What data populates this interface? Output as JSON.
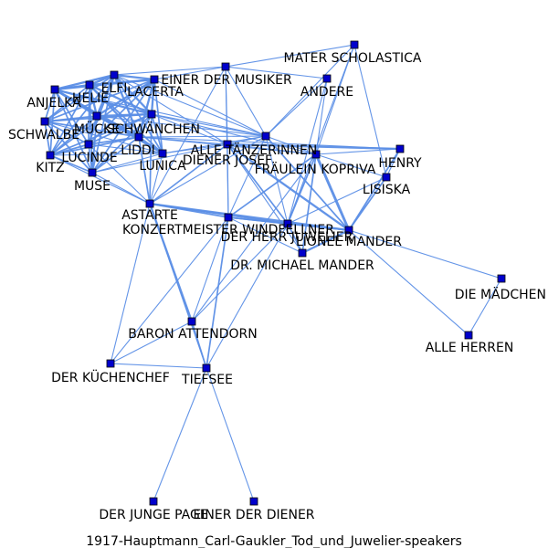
{
  "title": "1917-Hauptmann_Carl-Gaukler_Tod_und_Juwelier-speakers",
  "colors": {
    "background": "#ffffff",
    "edge": "#5b8ee6",
    "node_fill": "#0000cc",
    "node_stroke": "#000000",
    "label": "#000000"
  },
  "nodes": [
    {
      "id": "MATER SCHOLASTICA",
      "label": "MATER SCHOLASTICA"
    },
    {
      "id": "EINER DER MUSIKER",
      "label": "EINER DER MUSIKER"
    },
    {
      "id": "ANDERE",
      "label": "ANDERE"
    },
    {
      "id": "ANJELKA",
      "label": "ANJELKA"
    },
    {
      "id": "HELIE",
      "label": "HELIE"
    },
    {
      "id": "ELFI",
      "label": "ELFI"
    },
    {
      "id": "LACERTA",
      "label": "LACERTA"
    },
    {
      "id": "MÜCKE",
      "label": "MÜCKE"
    },
    {
      "id": "SCHWALBE",
      "label": "SCHWALBE"
    },
    {
      "id": "SCHWÄNCHEN",
      "label": "SCHWÄNCHEN"
    },
    {
      "id": "LIDDI",
      "label": "LIDDI"
    },
    {
      "id": "LUCINDE",
      "label": "LUCINDE"
    },
    {
      "id": "KITZ",
      "label": "KITZ"
    },
    {
      "id": "LUNICA",
      "label": "LUNICA"
    },
    {
      "id": "MUSE",
      "label": "MUSE"
    },
    {
      "id": "ALLE TÄNZERINNEN",
      "label": "ALLE TÄNZERINNEN"
    },
    {
      "id": "DIENER JOSEF",
      "label": "DIENER JOSEF"
    },
    {
      "id": "FRÄULEIN KOPRIVA",
      "label": "FRÄULEIN KOPRIVA"
    },
    {
      "id": "HENRY",
      "label": "HENRY"
    },
    {
      "id": "LISISKA",
      "label": "LISISKA"
    },
    {
      "id": "ASTARTE",
      "label": "ASTARTE"
    },
    {
      "id": "KONZERTMEISTER WINDFELLNER",
      "label": "KONZERTMEISTER WINDFELLNER"
    },
    {
      "id": "DER HERR JUWELIER",
      "label": "DER HERR JUWELIER"
    },
    {
      "id": "LIONEL MANDER",
      "label": "LIONEL MANDER"
    },
    {
      "id": "DR. MICHAEL MANDER",
      "label": "DR. MICHAEL MANDER"
    },
    {
      "id": "DIE MÄDCHEN",
      "label": "DIE MÄDCHEN"
    },
    {
      "id": "ALLE HERREN",
      "label": "ALLE HERREN"
    },
    {
      "id": "BARON ATTENDORN",
      "label": "BARON ATTENDORN"
    },
    {
      "id": "DER KÜCHENCHEF",
      "label": "DER KÜCHENCHEF"
    },
    {
      "id": "TIEFSEE",
      "label": "TIEFSEE"
    },
    {
      "id": "DER JUNGE PAGE",
      "label": "DER JUNGE PAGE"
    },
    {
      "id": "EINER DER DIENER",
      "label": "EINER DER DIENER"
    }
  ],
  "edges": [
    [
      "ANJELKA",
      "HELIE",
      3
    ],
    [
      "ANJELKA",
      "ELFI",
      3
    ],
    [
      "ANJELKA",
      "LACERTA",
      3
    ],
    [
      "ANJELKA",
      "MÜCKE",
      3
    ],
    [
      "ANJELKA",
      "SCHWALBE",
      2
    ],
    [
      "ANJELKA",
      "SCHWÄNCHEN",
      3
    ],
    [
      "ANJELKA",
      "LIDDI",
      3
    ],
    [
      "ANJELKA",
      "LUCINDE",
      2
    ],
    [
      "ANJELKA",
      "KITZ",
      2
    ],
    [
      "ANJELKA",
      "MUSE",
      2
    ],
    [
      "ANJELKA",
      "LUNICA",
      2
    ],
    [
      "ANJELKA",
      "ALLE TÄNZERINNEN",
      1
    ],
    [
      "HELIE",
      "ELFI",
      3
    ],
    [
      "HELIE",
      "LACERTA",
      3
    ],
    [
      "HELIE",
      "MÜCKE",
      3
    ],
    [
      "HELIE",
      "SCHWALBE",
      2
    ],
    [
      "HELIE",
      "SCHWÄNCHEN",
      3
    ],
    [
      "HELIE",
      "LIDDI",
      3
    ],
    [
      "HELIE",
      "LUCINDE",
      2
    ],
    [
      "HELIE",
      "KITZ",
      2
    ],
    [
      "HELIE",
      "MUSE",
      2
    ],
    [
      "HELIE",
      "LUNICA",
      2
    ],
    [
      "ELFI",
      "LACERTA",
      3
    ],
    [
      "ELFI",
      "MÜCKE",
      3
    ],
    [
      "ELFI",
      "SCHWALBE",
      2
    ],
    [
      "ELFI",
      "SCHWÄNCHEN",
      3
    ],
    [
      "ELFI",
      "LIDDI",
      3
    ],
    [
      "ELFI",
      "LUCINDE",
      2
    ],
    [
      "ELFI",
      "KITZ",
      2
    ],
    [
      "ELFI",
      "MUSE",
      2
    ],
    [
      "ELFI",
      "LUNICA",
      2
    ],
    [
      "ELFI",
      "EINER DER MUSIKER",
      1
    ],
    [
      "ELFI",
      "ALLE TÄNZERINNEN",
      1
    ],
    [
      "ELFI",
      "DIENER JOSEF",
      1
    ],
    [
      "LACERTA",
      "MÜCKE",
      3
    ],
    [
      "LACERTA",
      "SCHWALBE",
      2
    ],
    [
      "LACERTA",
      "SCHWÄNCHEN",
      3
    ],
    [
      "LACERTA",
      "LIDDI",
      3
    ],
    [
      "LACERTA",
      "LUCINDE",
      2
    ],
    [
      "LACERTA",
      "KITZ",
      2
    ],
    [
      "LACERTA",
      "MUSE",
      2
    ],
    [
      "LACERTA",
      "LUNICA",
      2
    ],
    [
      "LACERTA",
      "EINER DER MUSIKER",
      1
    ],
    [
      "LACERTA",
      "ALLE TÄNZERINNEN",
      1
    ],
    [
      "MÜCKE",
      "SCHWALBE",
      2
    ],
    [
      "MÜCKE",
      "SCHWÄNCHEN",
      3
    ],
    [
      "MÜCKE",
      "LIDDI",
      3
    ],
    [
      "MÜCKE",
      "LUCINDE",
      2
    ],
    [
      "MÜCKE",
      "KITZ",
      2
    ],
    [
      "MÜCKE",
      "MUSE",
      2
    ],
    [
      "MÜCKE",
      "LUNICA",
      2
    ],
    [
      "MÜCKE",
      "ALLE TÄNZERINNEN",
      1
    ],
    [
      "SCHWALBE",
      "SCHWÄNCHEN",
      2
    ],
    [
      "SCHWALBE",
      "LIDDI",
      2
    ],
    [
      "SCHWALBE",
      "LUCINDE",
      2
    ],
    [
      "SCHWALBE",
      "KITZ",
      2
    ],
    [
      "SCHWALBE",
      "MUSE",
      2
    ],
    [
      "SCHWALBE",
      "LUNICA",
      1
    ],
    [
      "SCHWÄNCHEN",
      "LIDDI",
      3
    ],
    [
      "SCHWÄNCHEN",
      "LUCINDE",
      2
    ],
    [
      "SCHWÄNCHEN",
      "KITZ",
      2
    ],
    [
      "SCHWÄNCHEN",
      "MUSE",
      2
    ],
    [
      "SCHWÄNCHEN",
      "LUNICA",
      2
    ],
    [
      "SCHWÄNCHEN",
      "ALLE TÄNZERINNEN",
      1
    ],
    [
      "SCHWÄNCHEN",
      "DIENER JOSEF",
      1
    ],
    [
      "SCHWÄNCHEN",
      "FRÄULEIN KOPRIVA",
      1
    ],
    [
      "SCHWÄNCHEN",
      "ASTARTE",
      2
    ],
    [
      "LIDDI",
      "LUCINDE",
      2
    ],
    [
      "LIDDI",
      "KITZ",
      2
    ],
    [
      "LIDDI",
      "MUSE",
      2
    ],
    [
      "LIDDI",
      "LUNICA",
      2
    ],
    [
      "LIDDI",
      "ALLE TÄNZERINNEN",
      1
    ],
    [
      "LIDDI",
      "DIENER JOSEF",
      1
    ],
    [
      "LIDDI",
      "ASTARTE",
      2
    ],
    [
      "LIDDI",
      "FRÄULEIN KOPRIVA",
      1
    ],
    [
      "LIDDI",
      "HENRY",
      1
    ],
    [
      "LUCINDE",
      "KITZ",
      2
    ],
    [
      "LUCINDE",
      "MUSE",
      2
    ],
    [
      "LUCINDE",
      "LUNICA",
      1
    ],
    [
      "LUCINDE",
      "ASTARTE",
      1
    ],
    [
      "KITZ",
      "MUSE",
      2
    ],
    [
      "KITZ",
      "LUNICA",
      1
    ],
    [
      "KITZ",
      "ASTARTE",
      1
    ],
    [
      "MUSE",
      "LUNICA",
      1
    ],
    [
      "MUSE",
      "ASTARTE",
      1
    ],
    [
      "MUSE",
      "DIENER JOSEF",
      1
    ],
    [
      "LUNICA",
      "ASTARTE",
      1
    ],
    [
      "LUNICA",
      "DIENER JOSEF",
      1
    ],
    [
      "LUNICA",
      "ALLE TÄNZERINNEN",
      1
    ],
    [
      "EINER DER MUSIKER",
      "ANDERE",
      1
    ],
    [
      "EINER DER MUSIKER",
      "ALLE TÄNZERINNEN",
      1
    ],
    [
      "EINER DER MUSIKER",
      "MATER SCHOLASTICA",
      1
    ],
    [
      "EINER DER MUSIKER",
      "DIENER JOSEF",
      1
    ],
    [
      "EINER DER MUSIKER",
      "KONZERTMEISTER WINDFELLNER",
      1
    ],
    [
      "EINER DER MUSIKER",
      "ASTARTE",
      1
    ],
    [
      "MATER SCHOLASTICA",
      "ALLE TÄNZERINNEN",
      1
    ],
    [
      "MATER SCHOLASTICA",
      "FRÄULEIN KOPRIVA",
      1
    ],
    [
      "MATER SCHOLASTICA",
      "LISISKA",
      1
    ],
    [
      "MATER SCHOLASTICA",
      "DER HERR JUWELIER",
      1
    ],
    [
      "ANDERE",
      "ALLE TÄNZERINNEN",
      1
    ],
    [
      "ANDERE",
      "DER HERR JUWELIER",
      1
    ],
    [
      "ANDERE",
      "FRÄULEIN KOPRIVA",
      1
    ],
    [
      "ALLE TÄNZERINNEN",
      "DIENER JOSEF",
      1
    ],
    [
      "ALLE TÄNZERINNEN",
      "FRÄULEIN KOPRIVA",
      1
    ],
    [
      "ALLE TÄNZERINNEN",
      "ASTARTE",
      1
    ],
    [
      "ALLE TÄNZERINNEN",
      "KONZERTMEISTER WINDFELLNER",
      1
    ],
    [
      "ALLE TÄNZERINNEN",
      "DER HERR JUWELIER",
      1
    ],
    [
      "ALLE TÄNZERINNEN",
      "LIONEL MANDER",
      2
    ],
    [
      "DIENER JOSEF",
      "FRÄULEIN KOPRIVA",
      1
    ],
    [
      "DIENER JOSEF",
      "HENRY",
      3
    ],
    [
      "DIENER JOSEF",
      "ASTARTE",
      2
    ],
    [
      "DIENER JOSEF",
      "KONZERTMEISTER WINDFELLNER",
      1
    ],
    [
      "DIENER JOSEF",
      "DER HERR JUWELIER",
      2
    ],
    [
      "DIENER JOSEF",
      "LIONEL MANDER",
      3
    ],
    [
      "DIENER JOSEF",
      "DR. MICHAEL MANDER",
      1
    ],
    [
      "FRÄULEIN KOPRIVA",
      "HENRY",
      1
    ],
    [
      "FRÄULEIN KOPRIVA",
      "LISISKA",
      1
    ],
    [
      "FRÄULEIN KOPRIVA",
      "KONZERTMEISTER WINDFELLNER",
      2
    ],
    [
      "FRÄULEIN KOPRIVA",
      "DER HERR JUWELIER",
      2
    ],
    [
      "FRÄULEIN KOPRIVA",
      "LIONEL MANDER",
      4
    ],
    [
      "FRÄULEIN KOPRIVA",
      "DR. MICHAEL MANDER",
      2
    ],
    [
      "FRÄULEIN KOPRIVA",
      "BARON ATTENDORN",
      1
    ],
    [
      "HENRY",
      "LISISKA",
      1
    ],
    [
      "HENRY",
      "LIONEL MANDER",
      2
    ],
    [
      "LISISKA",
      "LIONEL MANDER",
      2
    ],
    [
      "LISISKA",
      "DER HERR JUWELIER",
      1
    ],
    [
      "ASTARTE",
      "KONZERTMEISTER WINDFELLNER",
      2
    ],
    [
      "ASTARTE",
      "DER HERR JUWELIER",
      2
    ],
    [
      "ASTARTE",
      "LIONEL MANDER",
      3
    ],
    [
      "ASTARTE",
      "BARON ATTENDORN",
      3
    ],
    [
      "ASTARTE",
      "DER KÜCHENCHEF",
      1
    ],
    [
      "ASTARTE",
      "TIEFSEE",
      1
    ],
    [
      "KONZERTMEISTER WINDFELLNER",
      "DER HERR JUWELIER",
      2
    ],
    [
      "KONZERTMEISTER WINDFELLNER",
      "LIONEL MANDER",
      2
    ],
    [
      "KONZERTMEISTER WINDFELLNER",
      "DR. MICHAEL MANDER",
      1
    ],
    [
      "KONZERTMEISTER WINDFELLNER",
      "TIEFSEE",
      2
    ],
    [
      "KONZERTMEISTER WINDFELLNER",
      "DER KÜCHENCHEF",
      1
    ],
    [
      "KONZERTMEISTER WINDFELLNER",
      "BARON ATTENDORN",
      1
    ],
    [
      "DER HERR JUWELIER",
      "LIONEL MANDER",
      2
    ],
    [
      "DER HERR JUWELIER",
      "DR. MICHAEL MANDER",
      2
    ],
    [
      "DER HERR JUWELIER",
      "BARON ATTENDORN",
      1
    ],
    [
      "DER HERR JUWELIER",
      "TIEFSEE",
      1
    ],
    [
      "LIONEL MANDER",
      "DR. MICHAEL MANDER",
      3
    ],
    [
      "LIONEL MANDER",
      "DIE MÄDCHEN",
      1
    ],
    [
      "LIONEL MANDER",
      "ALLE HERREN",
      1
    ],
    [
      "DIE MÄDCHEN",
      "ALLE HERREN",
      1
    ],
    [
      "BARON ATTENDORN",
      "TIEFSEE",
      2
    ],
    [
      "BARON ATTENDORN",
      "DER KÜCHENCHEF",
      1
    ],
    [
      "DER KÜCHENCHEF",
      "TIEFSEE",
      1
    ],
    [
      "TIEFSEE",
      "DER JUNGE PAGE",
      1
    ],
    [
      "TIEFSEE",
      "EINER DER DIENER",
      1
    ]
  ]
}
